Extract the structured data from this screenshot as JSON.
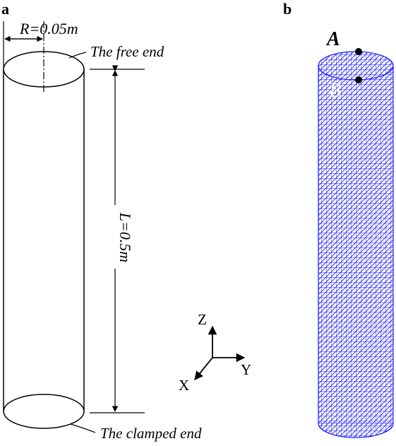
{
  "panels": {
    "a": {
      "label": "a",
      "radius_label": "R=0.05m",
      "length_label": "L=0.5m",
      "free_end_label": "The free end",
      "clamped_end_label": "The clamped end",
      "axes": {
        "z": "Z",
        "y": "Y",
        "x": "X"
      }
    },
    "b": {
      "label": "b",
      "point_a": "A",
      "point_b": "B",
      "mesh_color": "#1a1aff"
    }
  }
}
